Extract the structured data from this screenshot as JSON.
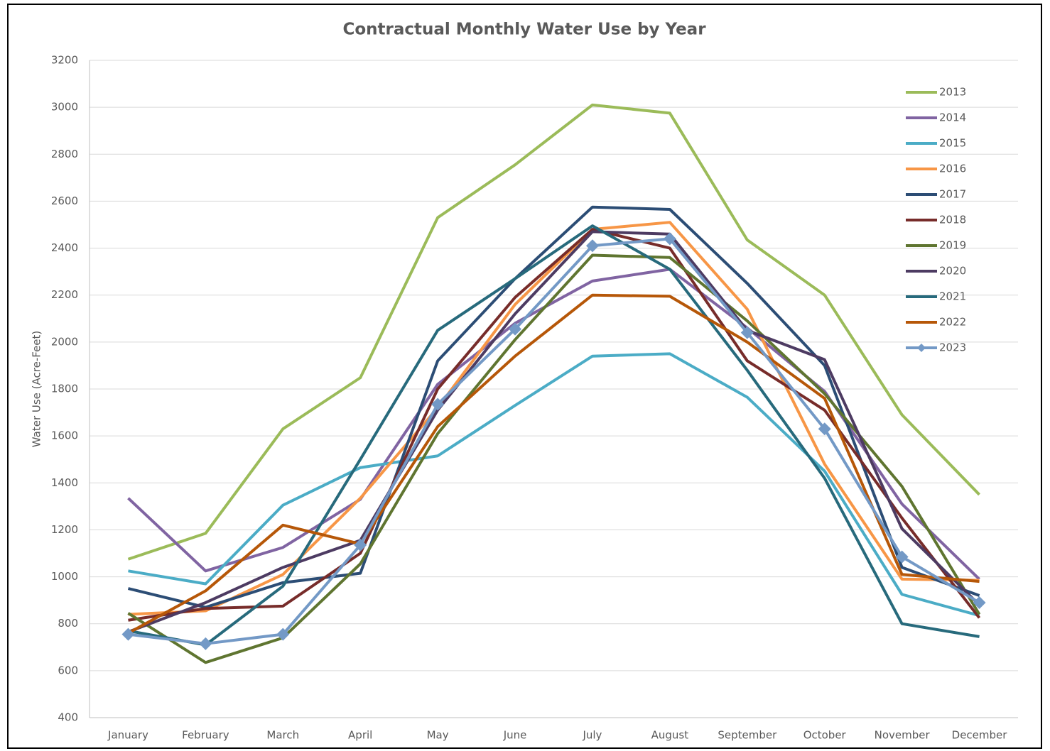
{
  "chart_data": {
    "type": "line",
    "title": "Contractual Monthly Water Use by Year",
    "y_label": "Water Use (Acre-Feet)",
    "categories": [
      "January",
      "February",
      "March",
      "April",
      "May",
      "June",
      "July",
      "August",
      "September",
      "October",
      "November",
      "December"
    ],
    "ylim": [
      400,
      3200
    ],
    "yticks": [
      400,
      600,
      800,
      1000,
      1200,
      1400,
      1600,
      1800,
      2000,
      2200,
      2400,
      2600,
      2800,
      3000,
      3200
    ],
    "grid": true,
    "legend": "upper right",
    "series": [
      {
        "name": "2013",
        "color": "#9bbb59",
        "values": [
          1075,
          1185,
          1630,
          1848,
          2530,
          2755,
          3010,
          2975,
          2435,
          2200,
          1690,
          1350
        ]
      },
      {
        "name": "2014",
        "color": "#8064a2",
        "values": [
          1335,
          1025,
          1125,
          1330,
          1820,
          2080,
          2260,
          2310,
          2060,
          1790,
          1310,
          990
        ]
      },
      {
        "name": "2015",
        "color": "#4bacc6",
        "values": [
          1025,
          970,
          1305,
          1465,
          1515,
          1730,
          1940,
          1950,
          1765,
          1450,
          925,
          835
        ]
      },
      {
        "name": "2016",
        "color": "#f79646",
        "values": [
          840,
          855,
          1010,
          1335,
          1720,
          2160,
          2480,
          2510,
          2140,
          1480,
          990,
          985
        ]
      },
      {
        "name": "2017",
        "color": "#2c4d75",
        "values": [
          950,
          870,
          975,
          1015,
          1920,
          2270,
          2575,
          2565,
          2250,
          1900,
          1040,
          920
        ]
      },
      {
        "name": "2018",
        "color": "#772c2a",
        "values": [
          815,
          865,
          875,
          1100,
          1800,
          2190,
          2480,
          2400,
          1920,
          1710,
          1250,
          825
        ]
      },
      {
        "name": "2019",
        "color": "#5f7530",
        "values": [
          845,
          635,
          740,
          1055,
          1610,
          2010,
          2370,
          2360,
          2090,
          1780,
          1385,
          840
        ]
      },
      {
        "name": "2020",
        "color": "#4d3b62",
        "values": [
          765,
          890,
          1040,
          1155,
          1710,
          2120,
          2470,
          2460,
          2050,
          1925,
          1205,
          880
        ]
      },
      {
        "name": "2021",
        "color": "#276a7c",
        "values": [
          770,
          710,
          960,
          1500,
          2050,
          2270,
          2495,
          2310,
          1880,
          1420,
          800,
          745
        ]
      },
      {
        "name": "2022",
        "color": "#b65708",
        "values": [
          760,
          940,
          1220,
          1140,
          1640,
          1940,
          2200,
          2195,
          2000,
          1760,
          1010,
          980
        ]
      },
      {
        "name": "2023",
        "color": "#7399c6",
        "marker": "diamond",
        "values": [
          755,
          715,
          755,
          1135,
          1735,
          2055,
          2410,
          2440,
          2040,
          1630,
          1085,
          890
        ]
      }
    ]
  }
}
